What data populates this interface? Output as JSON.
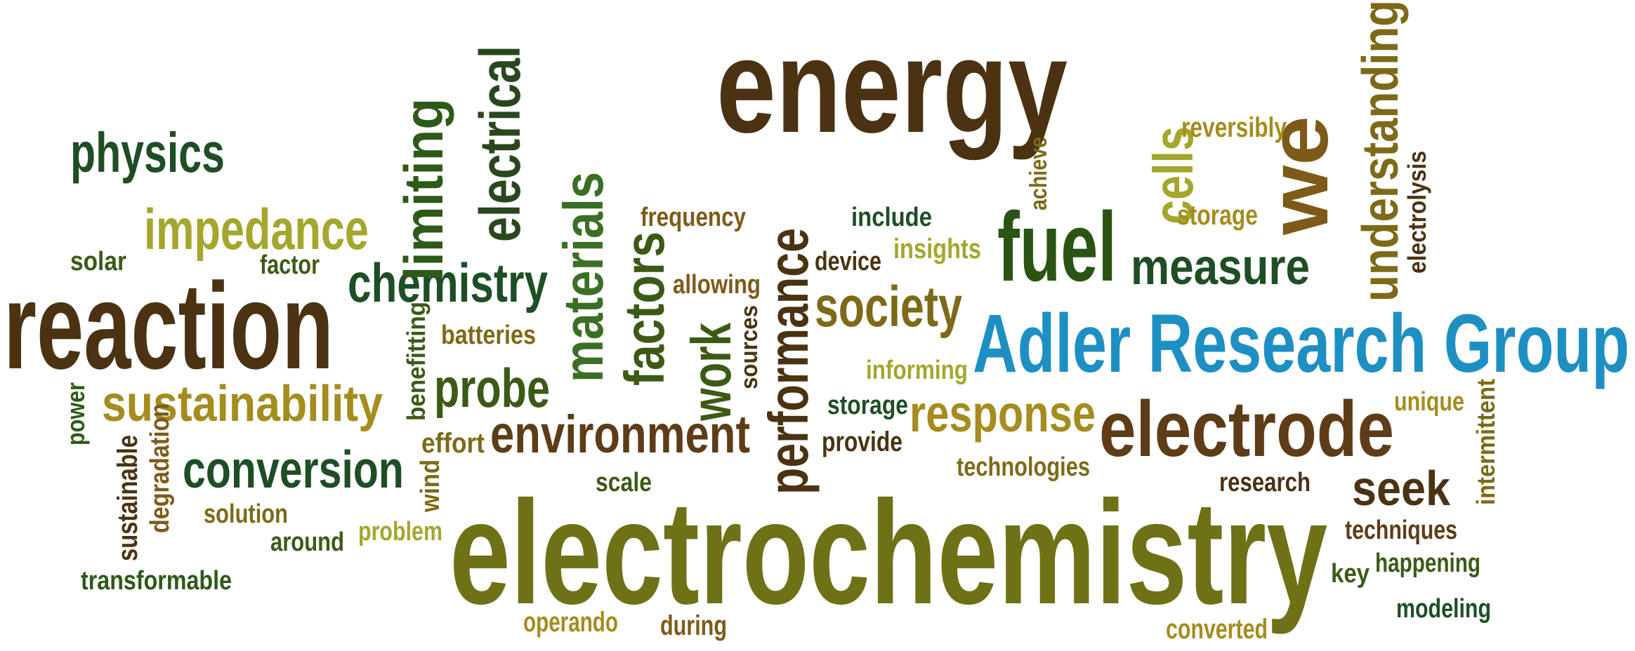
{
  "title": "Adler Research Group",
  "words": [
    {
      "text": "energy",
      "color": "#4a3212"
    },
    {
      "text": "electrochemistry",
      "color": "#6e7116"
    },
    {
      "text": "reaction",
      "color": "#4a3212"
    },
    {
      "text": "Adler Research Group",
      "color": "#1e8fc3"
    },
    {
      "text": "electrode",
      "color": "#5e3c17"
    },
    {
      "text": "fuel",
      "color": "#2b5314"
    },
    {
      "text": "we",
      "color": "#7d5a18"
    },
    {
      "text": "physics",
      "color": "#1e4e25"
    },
    {
      "text": "impedance",
      "color": "#a4a62d"
    },
    {
      "text": "chemistry",
      "color": "#1e4e25"
    },
    {
      "text": "limiting",
      "color": "#2d5a18"
    },
    {
      "text": "electrical",
      "color": "#2a461e"
    },
    {
      "text": "materials",
      "color": "#3b6f25"
    },
    {
      "text": "factors",
      "color": "#3c5a16"
    },
    {
      "text": "work",
      "color": "#3c5a16"
    },
    {
      "text": "performance",
      "color": "#4a3212"
    },
    {
      "text": "society",
      "color": "#7d6a18"
    },
    {
      "text": "measure",
      "color": "#1e4e25"
    },
    {
      "text": "cells",
      "color": "#a4a62d"
    },
    {
      "text": "understanding",
      "color": "#7d6a18"
    },
    {
      "text": "electrolysis",
      "color": "#4a3212"
    },
    {
      "text": "sustainability",
      "color": "#a48c1e"
    },
    {
      "text": "probe",
      "color": "#3c5a16"
    },
    {
      "text": "environment",
      "color": "#5e3c17"
    },
    {
      "text": "conversion",
      "color": "#1e4e25"
    },
    {
      "text": "response",
      "color": "#a48c1e"
    },
    {
      "text": "seek",
      "color": "#4a3212"
    },
    {
      "text": "solar",
      "color": "#3c5a16"
    },
    {
      "text": "factor",
      "color": "#3c5a16"
    },
    {
      "text": "batteries",
      "color": "#7d6a18"
    },
    {
      "text": "benefitting",
      "color": "#3c5a16"
    },
    {
      "text": "power",
      "color": "#2d5a18"
    },
    {
      "text": "sustainable",
      "color": "#4a3212"
    },
    {
      "text": "degradation",
      "color": "#7d5a18"
    },
    {
      "text": "wind",
      "color": "#7d6a18"
    },
    {
      "text": "solution",
      "color": "#7d6a18"
    },
    {
      "text": "around",
      "color": "#3c5a16"
    },
    {
      "text": "problem",
      "color": "#a4a62d"
    },
    {
      "text": "transformable",
      "color": "#2d5a18"
    },
    {
      "text": "effort",
      "color": "#7d6a18"
    },
    {
      "text": "frequency",
      "color": "#7d5a18"
    },
    {
      "text": "allowing",
      "color": "#7d5a18"
    },
    {
      "text": "sources",
      "color": "#4a3212"
    },
    {
      "text": "include",
      "color": "#1e4e25"
    },
    {
      "text": "device",
      "color": "#4a3212"
    },
    {
      "text": "insights",
      "color": "#a4a62d"
    },
    {
      "text": "achieve",
      "color": "#7d6a18"
    },
    {
      "text": "reversibly",
      "color": "#a48c1e"
    },
    {
      "text": "storage",
      "color": "#a48c1e"
    },
    {
      "text": "informing",
      "color": "#a4a62d"
    },
    {
      "text": "storage",
      "color": "#1e4e25"
    },
    {
      "text": "provide",
      "color": "#4a3212"
    },
    {
      "text": "technologies",
      "color": "#7d6a18"
    },
    {
      "text": "scale",
      "color": "#3c5a16"
    },
    {
      "text": "unique",
      "color": "#a48c1e"
    },
    {
      "text": "intermittent",
      "color": "#7d6a18"
    },
    {
      "text": "research",
      "color": "#4a3212"
    },
    {
      "text": "techniques",
      "color": "#5e3c17"
    },
    {
      "text": "key",
      "color": "#3c5a16"
    },
    {
      "text": "happening",
      "color": "#3c5a16"
    },
    {
      "text": "modeling",
      "color": "#1e4e25"
    },
    {
      "text": "operando",
      "color": "#a48c1e"
    },
    {
      "text": "during",
      "color": "#7d5a18"
    },
    {
      "text": "converted",
      "color": "#a48c1e"
    }
  ]
}
